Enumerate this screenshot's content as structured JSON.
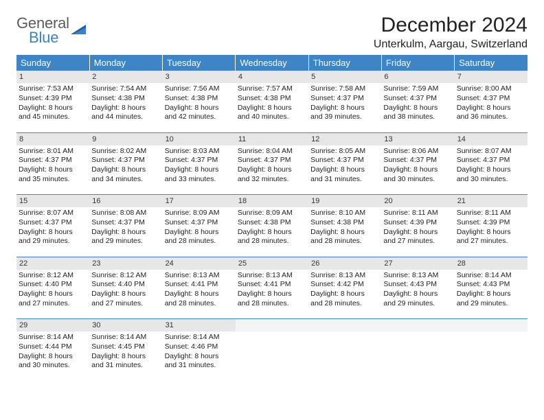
{
  "brand": {
    "word1": "General",
    "word2": "Blue",
    "gray": "#5c5c5c",
    "blue": "#3b82c4"
  },
  "title": "December 2024",
  "location": "Unterkulm, Aargau, Switzerland",
  "header_bg": "#3d85c6",
  "daynum_bg": "#e7e7e7",
  "rule_color": "#3d85c6",
  "weekdays": [
    "Sunday",
    "Monday",
    "Tuesday",
    "Wednesday",
    "Thursday",
    "Friday",
    "Saturday"
  ],
  "weeks": [
    [
      {
        "n": "1",
        "sr": "7:53 AM",
        "ss": "4:39 PM",
        "dh": "8",
        "dm": "45"
      },
      {
        "n": "2",
        "sr": "7:54 AM",
        "ss": "4:38 PM",
        "dh": "8",
        "dm": "44"
      },
      {
        "n": "3",
        "sr": "7:56 AM",
        "ss": "4:38 PM",
        "dh": "8",
        "dm": "42"
      },
      {
        "n": "4",
        "sr": "7:57 AM",
        "ss": "4:38 PM",
        "dh": "8",
        "dm": "40"
      },
      {
        "n": "5",
        "sr": "7:58 AM",
        "ss": "4:37 PM",
        "dh": "8",
        "dm": "39"
      },
      {
        "n": "6",
        "sr": "7:59 AM",
        "ss": "4:37 PM",
        "dh": "8",
        "dm": "38"
      },
      {
        "n": "7",
        "sr": "8:00 AM",
        "ss": "4:37 PM",
        "dh": "8",
        "dm": "36"
      }
    ],
    [
      {
        "n": "8",
        "sr": "8:01 AM",
        "ss": "4:37 PM",
        "dh": "8",
        "dm": "35"
      },
      {
        "n": "9",
        "sr": "8:02 AM",
        "ss": "4:37 PM",
        "dh": "8",
        "dm": "34"
      },
      {
        "n": "10",
        "sr": "8:03 AM",
        "ss": "4:37 PM",
        "dh": "8",
        "dm": "33"
      },
      {
        "n": "11",
        "sr": "8:04 AM",
        "ss": "4:37 PM",
        "dh": "8",
        "dm": "32"
      },
      {
        "n": "12",
        "sr": "8:05 AM",
        "ss": "4:37 PM",
        "dh": "8",
        "dm": "31"
      },
      {
        "n": "13",
        "sr": "8:06 AM",
        "ss": "4:37 PM",
        "dh": "8",
        "dm": "30"
      },
      {
        "n": "14",
        "sr": "8:07 AM",
        "ss": "4:37 PM",
        "dh": "8",
        "dm": "30"
      }
    ],
    [
      {
        "n": "15",
        "sr": "8:07 AM",
        "ss": "4:37 PM",
        "dh": "8",
        "dm": "29"
      },
      {
        "n": "16",
        "sr": "8:08 AM",
        "ss": "4:37 PM",
        "dh": "8",
        "dm": "29"
      },
      {
        "n": "17",
        "sr": "8:09 AM",
        "ss": "4:37 PM",
        "dh": "8",
        "dm": "28"
      },
      {
        "n": "18",
        "sr": "8:09 AM",
        "ss": "4:38 PM",
        "dh": "8",
        "dm": "28"
      },
      {
        "n": "19",
        "sr": "8:10 AM",
        "ss": "4:38 PM",
        "dh": "8",
        "dm": "28"
      },
      {
        "n": "20",
        "sr": "8:11 AM",
        "ss": "4:39 PM",
        "dh": "8",
        "dm": "27"
      },
      {
        "n": "21",
        "sr": "8:11 AM",
        "ss": "4:39 PM",
        "dh": "8",
        "dm": "27"
      }
    ],
    [
      {
        "n": "22",
        "sr": "8:12 AM",
        "ss": "4:40 PM",
        "dh": "8",
        "dm": "27"
      },
      {
        "n": "23",
        "sr": "8:12 AM",
        "ss": "4:40 PM",
        "dh": "8",
        "dm": "27"
      },
      {
        "n": "24",
        "sr": "8:13 AM",
        "ss": "4:41 PM",
        "dh": "8",
        "dm": "28"
      },
      {
        "n": "25",
        "sr": "8:13 AM",
        "ss": "4:41 PM",
        "dh": "8",
        "dm": "28"
      },
      {
        "n": "26",
        "sr": "8:13 AM",
        "ss": "4:42 PM",
        "dh": "8",
        "dm": "28"
      },
      {
        "n": "27",
        "sr": "8:13 AM",
        "ss": "4:43 PM",
        "dh": "8",
        "dm": "29"
      },
      {
        "n": "28",
        "sr": "8:14 AM",
        "ss": "4:43 PM",
        "dh": "8",
        "dm": "29"
      }
    ],
    [
      {
        "n": "29",
        "sr": "8:14 AM",
        "ss": "4:44 PM",
        "dh": "8",
        "dm": "30"
      },
      {
        "n": "30",
        "sr": "8:14 AM",
        "ss": "4:45 PM",
        "dh": "8",
        "dm": "31"
      },
      {
        "n": "31",
        "sr": "8:14 AM",
        "ss": "4:46 PM",
        "dh": "8",
        "dm": "31"
      },
      null,
      null,
      null,
      null
    ]
  ],
  "labels": {
    "sunrise": "Sunrise:",
    "sunset": "Sunset:",
    "daylight": "Daylight:",
    "hours": "hours",
    "and": "and",
    "minutes": "minutes."
  }
}
